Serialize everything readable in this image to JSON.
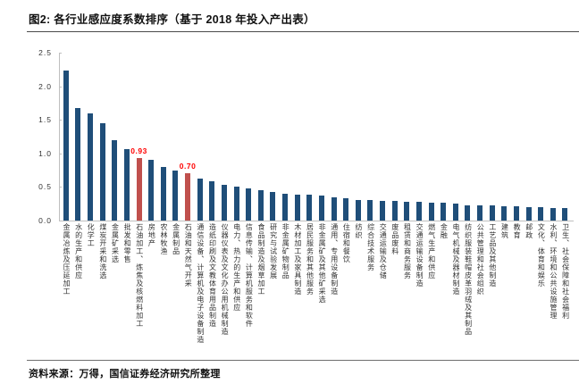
{
  "title": "图2: 各行业感应度系数排序（基于 2018 年投入产出表）",
  "source": "资料来源：万得，国信证券经济研究所整理",
  "chart_data": {
    "type": "bar",
    "title": "各行业感应度系数排序（基于 2018 年投入产出表）",
    "xlabel": "",
    "ylabel": "",
    "ylim": [
      0,
      2.5
    ],
    "yticks": [
      "2.5",
      "2.0",
      "1.5",
      "1.0",
      "0.5",
      "0.0"
    ],
    "grid": false,
    "legend": false,
    "bar_color": "#1f4e79",
    "highlight_color": "#c0504d",
    "value_label_color": "#ff0000",
    "categories": [
      "金属冶炼及压延加工",
      "水的生产和供应",
      "化学工",
      "煤炭开采和洗选",
      "金属矿采选",
      "批发和零售",
      "石油加工、炼焦及核燃料加工",
      "房地产",
      "农林牧渔",
      "金属制品",
      "石油和天然气开采",
      "通信设备、计算机及电子设备制造",
      "造纸印刷及文教体育用品制造",
      "仪器仪表及文化办公用机械制造",
      "电力、热力的生产和供应",
      "信息传输、计算机服务和软件",
      "食品制造及烟草加工",
      "研究与试验发展",
      "非金属矿物制品",
      "木材加工及家具制造",
      "居民服务和其他服务",
      "非金属矿及其他矿采选",
      "通用、专用设备制造",
      "住宿和餐饮",
      "纺织",
      "综合技术服务",
      "交通运输及仓储",
      "废品废料",
      "租赁和商务服务",
      "交通运输设备制造",
      "燃气生产和供应",
      "金融",
      "电气机械及器材制造",
      "纺织服装鞋帽皮革羽绒及其制品",
      "公共管理和社会组织",
      "工艺品及其他制造",
      "建筑",
      "教育",
      "邮政",
      "文化、体育和娱乐",
      "水利、环境和公共设施管理",
      "卫生、社会保障和社会福利"
    ],
    "values": [
      2.24,
      1.67,
      1.6,
      1.45,
      1.2,
      1.07,
      0.93,
      0.91,
      0.8,
      0.75,
      0.7,
      0.63,
      0.58,
      0.53,
      0.5,
      0.48,
      0.45,
      0.42,
      0.4,
      0.39,
      0.38,
      0.37,
      0.35,
      0.33,
      0.31,
      0.3,
      0.29,
      0.29,
      0.28,
      0.28,
      0.27,
      0.26,
      0.25,
      0.23,
      0.22,
      0.22,
      0.21,
      0.21,
      0.2,
      0.2,
      0.19,
      0.18
    ],
    "highlights": [
      {
        "index": 6,
        "category": "石油加工、炼焦及核燃料加工",
        "label": "0.93"
      },
      {
        "index": 10,
        "category": "石油和天然气开采",
        "label": "0.70"
      }
    ]
  }
}
